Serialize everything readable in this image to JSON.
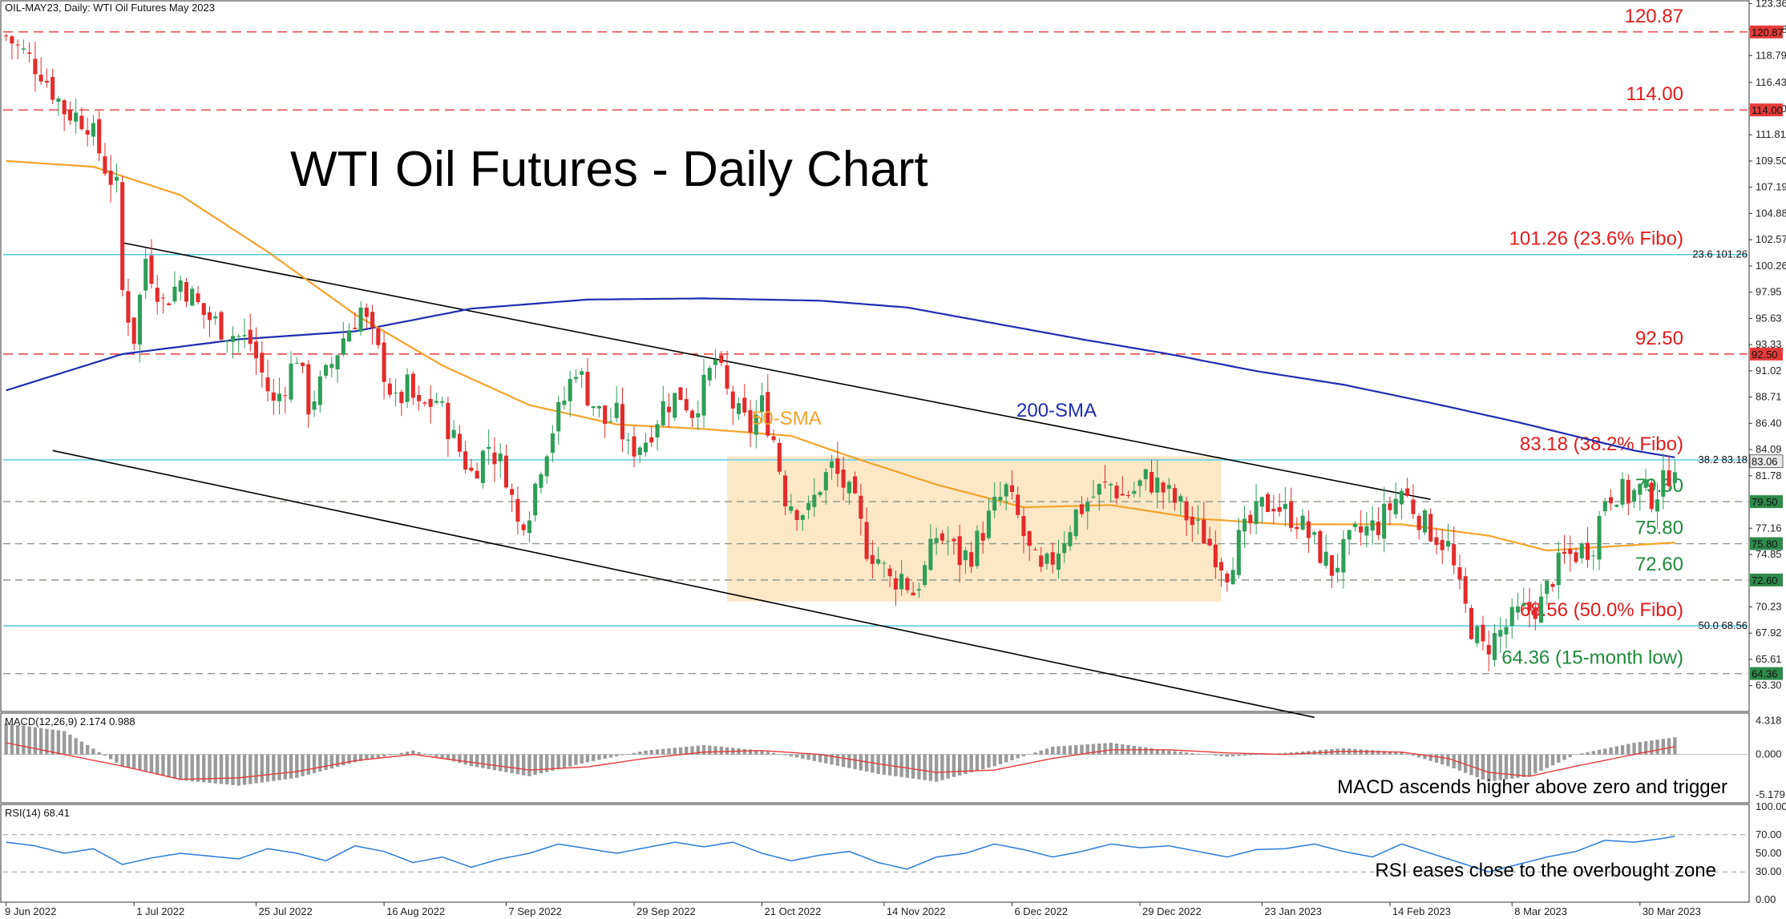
{
  "header": {
    "symbol_text": "OIL-MAY23, Daily:  WTI Oil Futures May 2023"
  },
  "colors": {
    "bull": "#2e9e57",
    "bear": "#e32b2b",
    "sma50": "#f5a32a",
    "sma200": "#1f2db0",
    "fibo": "#4fc8e8",
    "level": "#8a9a8e",
    "resistance": "#e23b3b",
    "rsi": "#2a7bd6",
    "macd_signal": "#e23b3b",
    "macd_hist": "#9a9a9a",
    "box": "#fbe3bd"
  },
  "chart_data": [
    {
      "type": "candlestick",
      "title": "WTI Oil Futures - Daily Chart",
      "y_range": [
        61.3,
        123.4
      ],
      "y_ticks": [
        "123.36",
        "121.08",
        "118.79",
        "116.43",
        "114.10",
        "111.81",
        "109.50",
        "107.19",
        "104.88",
        "102.57",
        "100.26",
        "97.95",
        "95.63",
        "93.33",
        "91.02",
        "88.71",
        "86.40",
        "84.09",
        "81.78",
        "79.47",
        "77.16",
        "74.85",
        "72.54",
        "70.23",
        "67.92",
        "65.61",
        "63.30"
      ],
      "x_labels": [
        "9 Jun 2022",
        "1 Jul 2022",
        "25 Jul 2022",
        "16 Aug 2022",
        "7 Sep 2022",
        "29 Sep 2022",
        "21 Oct 2022",
        "14 Nov 2022",
        "6 Dec 2022",
        "29 Dec 2022",
        "23 Jan 2023",
        "14 Feb 2023",
        "8 Mar 2023",
        "30 Mar 2023"
      ],
      "path_points": [
        [
          0,
          120.5
        ],
        [
          6,
          117.5
        ],
        [
          10,
          114.0
        ],
        [
          14,
          113.0
        ],
        [
          17,
          109.0
        ],
        [
          19,
          107.0
        ],
        [
          20,
          98.0
        ],
        [
          22,
          94.0
        ],
        [
          24,
          101.0
        ],
        [
          27,
          97.0
        ],
        [
          30,
          99.0
        ],
        [
          34,
          96.0
        ],
        [
          38,
          94.5
        ],
        [
          42,
          93.5
        ],
        [
          46,
          88.0
        ],
        [
          48,
          90.0
        ],
        [
          50,
          92.5
        ],
        [
          52,
          88.0
        ],
        [
          55,
          90.5
        ],
        [
          58,
          94.0
        ],
        [
          61,
          96.5
        ],
        [
          64,
          92.5
        ],
        [
          67,
          88.0
        ],
        [
          69,
          89.5
        ],
        [
          71,
          87.5
        ],
        [
          74,
          88.5
        ],
        [
          77,
          85.0
        ],
        [
          80,
          82.0
        ],
        [
          83,
          84.5
        ],
        [
          86,
          82.0
        ],
        [
          88,
          77.5
        ],
        [
          90,
          79.0
        ],
        [
          92,
          83.0
        ],
        [
          94,
          86.0
        ],
        [
          96,
          88.5
        ],
        [
          98,
          91.5
        ],
        [
          100,
          89.0
        ],
        [
          103,
          86.5
        ],
        [
          105,
          87.0
        ],
        [
          107,
          84.0
        ],
        [
          110,
          85.0
        ],
        [
          113,
          88.0
        ],
        [
          116,
          89.0
        ],
        [
          118,
          87.5
        ],
        [
          120,
          89.5
        ],
        [
          122,
          92.0
        ],
        [
          124,
          89.0
        ],
        [
          126,
          87.0
        ],
        [
          128,
          86.0
        ],
        [
          130,
          88.0
        ],
        [
          132,
          85.0
        ],
        [
          134,
          80.0
        ],
        [
          136,
          79.0
        ],
        [
          138,
          78.5
        ],
        [
          140,
          81.0
        ],
        [
          142,
          82.5
        ],
        [
          144,
          81.0
        ],
        [
          146,
          79.0
        ],
        [
          148,
          75.5
        ],
        [
          150,
          74.5
        ],
        [
          152,
          72.5
        ],
        [
          154,
          73.0
        ],
        [
          156,
          71.5
        ],
        [
          158,
          73.5
        ],
        [
          160,
          76.5
        ],
        [
          162,
          76.0
        ],
        [
          164,
          74.5
        ],
        [
          166,
          75.0
        ],
        [
          168,
          77.0
        ],
        [
          170,
          79.0
        ],
        [
          172,
          80.5
        ],
        [
          174,
          78.0
        ],
        [
          176,
          75.0
        ],
        [
          178,
          73.0
        ],
        [
          180,
          74.5
        ],
        [
          182,
          76.5
        ],
        [
          184,
          78.5
        ],
        [
          186,
          79.5
        ],
        [
          188,
          80.5
        ],
        [
          190,
          81.0
        ],
        [
          192,
          80.0
        ],
        [
          194,
          80.5
        ],
        [
          196,
          81.5
        ],
        [
          198,
          81.0
        ],
        [
          200,
          80.0
        ],
        [
          202,
          79.0
        ],
        [
          204,
          77.5
        ],
        [
          206,
          76.5
        ],
        [
          208,
          75.0
        ],
        [
          210,
          73.5
        ],
        [
          212,
          76.0
        ],
        [
          214,
          77.5
        ],
        [
          216,
          79.0
        ],
        [
          218,
          79.5
        ],
        [
          220,
          78.5
        ],
        [
          222,
          78.0
        ],
        [
          224,
          76.5
        ],
        [
          226,
          75.0
        ],
        [
          228,
          73.5
        ],
        [
          230,
          75.0
        ],
        [
          232,
          76.5
        ],
        [
          234,
          77.0
        ],
        [
          236,
          77.5
        ],
        [
          238,
          79.0
        ],
        [
          240,
          80.5
        ],
        [
          242,
          79.0
        ],
        [
          244,
          77.5
        ],
        [
          246,
          76.5
        ],
        [
          248,
          75.5
        ],
        [
          250,
          71.5
        ],
        [
          252,
          68.5
        ],
        [
          254,
          66.5
        ],
        [
          256,
          67.5
        ],
        [
          258,
          68.5
        ],
        [
          260,
          69.5
        ],
        [
          262,
          70.0
        ],
        [
          264,
          70.5
        ],
        [
          266,
          73.0
        ],
        [
          268,
          74.5
        ],
        [
          270,
          75.0
        ],
        [
          272,
          75.5
        ],
        [
          273,
          76.0
        ],
        [
          275,
          80.0
        ],
        [
          277,
          80.5
        ],
        [
          279,
          80.0
        ],
        [
          281,
          80.5
        ],
        [
          283,
          80.0
        ],
        [
          285,
          81.0
        ],
        [
          287,
          83.2
        ]
      ],
      "sma50": [
        [
          0,
          109.5
        ],
        [
          15,
          109.0
        ],
        [
          30,
          106.5
        ],
        [
          45,
          101.5
        ],
        [
          60,
          96.0
        ],
        [
          75,
          91.5
        ],
        [
          90,
          88.0
        ],
        [
          105,
          86.3
        ],
        [
          120,
          85.9
        ],
        [
          135,
          85.3
        ],
        [
          145,
          83.5
        ],
        [
          160,
          81.0
        ],
        [
          175,
          79.0
        ],
        [
          190,
          79.2
        ],
        [
          205,
          78.0
        ],
        [
          220,
          77.5
        ],
        [
          240,
          77.5
        ],
        [
          255,
          76.5
        ],
        [
          265,
          75.2
        ],
        [
          287,
          75.9
        ]
      ],
      "sma200": [
        [
          0,
          89.3
        ],
        [
          20,
          92.5
        ],
        [
          40,
          93.8
        ],
        [
          60,
          94.5
        ],
        [
          80,
          96.5
        ],
        [
          100,
          97.3
        ],
        [
          120,
          97.4
        ],
        [
          140,
          97.2
        ],
        [
          155,
          96.6
        ],
        [
          170,
          95.2
        ],
        [
          185,
          93.8
        ],
        [
          200,
          92.5
        ],
        [
          215,
          91.0
        ],
        [
          230,
          89.8
        ],
        [
          245,
          88.2
        ],
        [
          260,
          86.5
        ],
        [
          272,
          85.0
        ],
        [
          280,
          84.0
        ],
        [
          287,
          83.4
        ]
      ],
      "channel_upper": [
        [
          20,
          102.3
        ],
        [
          245,
          79.7
        ]
      ],
      "channel_lower": [
        [
          8,
          84.0
        ],
        [
          225,
          60.5
        ]
      ],
      "consolidation_box": {
        "x": [
          124,
          209
        ],
        "y": [
          70.7,
          83.5
        ]
      },
      "levels": [
        {
          "value": 120.87,
          "label": "120.87",
          "badge": "120.87",
          "style": "resistance"
        },
        {
          "value": 114.0,
          "label": "114.00",
          "badge": "114.00",
          "style": "resistance"
        },
        {
          "value": 101.26,
          "label": "101.26 (23.6% Fibo)",
          "badge": "23.6 101.26",
          "style": "fibo"
        },
        {
          "value": 92.5,
          "label": "92.50",
          "badge": "92.50",
          "style": "resistance"
        },
        {
          "value": 83.18,
          "label": "83.18 (38.2% Fibo)",
          "badge": "38.2 83.18",
          "style": "fibo"
        },
        {
          "value": 79.5,
          "label": "79.50",
          "badge": "79.50",
          "style": "level"
        },
        {
          "value": 75.8,
          "label": "75.80",
          "badge": "75.80",
          "style": "level"
        },
        {
          "value": 72.6,
          "label": "72.60",
          "badge": "72.60",
          "style": "level"
        },
        {
          "value": 68.56,
          "label": "68.56 (50.0% Fibo)",
          "badge": "50.0 68.56",
          "style": "fibo"
        },
        {
          "value": 64.36,
          "label": "64.36 (15-month low)",
          "badge": "64.36",
          "style": "level"
        }
      ],
      "current_price_badge": "83.06",
      "sma50_label": "50-SMA",
      "sma200_label": "200-SMA"
    },
    {
      "type": "histogram",
      "name": "MACD",
      "legend": "MACD(12,26,9) 2.174 0.988",
      "y_ticks": [
        "4.318",
        "0.000",
        "-5.179"
      ],
      "y_range": [
        -5.8,
        4.9
      ],
      "hist": [
        [
          0,
          4.0
        ],
        [
          10,
          3.0
        ],
        [
          20,
          -1.5
        ],
        [
          30,
          -3.3
        ],
        [
          40,
          -4.0
        ],
        [
          50,
          -3.0
        ],
        [
          60,
          -1.0
        ],
        [
          70,
          0.5
        ],
        [
          80,
          -1.5
        ],
        [
          90,
          -2.8
        ],
        [
          100,
          -1.0
        ],
        [
          110,
          0.5
        ],
        [
          120,
          1.2
        ],
        [
          130,
          0.5
        ],
        [
          140,
          -1.0
        ],
        [
          150,
          -2.5
        ],
        [
          160,
          -3.5
        ],
        [
          170,
          -1.5
        ],
        [
          180,
          1.0
        ],
        [
          190,
          1.5
        ],
        [
          200,
          0.5
        ],
        [
          210,
          -0.3
        ],
        [
          220,
          0.2
        ],
        [
          230,
          0.8
        ],
        [
          240,
          0.3
        ],
        [
          248,
          -1.5
        ],
        [
          255,
          -3.5
        ],
        [
          262,
          -2.8
        ],
        [
          270,
          0.0
        ],
        [
          280,
          1.5
        ],
        [
          287,
          2.2
        ]
      ],
      "signal": [
        [
          0,
          1.5
        ],
        [
          10,
          0.0
        ],
        [
          20,
          -1.5
        ],
        [
          30,
          -3.2
        ],
        [
          40,
          -3.0
        ],
        [
          50,
          -2.2
        ],
        [
          60,
          -0.8
        ],
        [
          70,
          0.0
        ],
        [
          80,
          -1.0
        ],
        [
          90,
          -2.0
        ],
        [
          100,
          -1.6
        ],
        [
          110,
          -0.5
        ],
        [
          120,
          0.3
        ],
        [
          130,
          0.5
        ],
        [
          140,
          0.0
        ],
        [
          150,
          -1.2
        ],
        [
          160,
          -2.3
        ],
        [
          170,
          -2.0
        ],
        [
          180,
          -0.5
        ],
        [
          190,
          0.6
        ],
        [
          200,
          0.6
        ],
        [
          210,
          0.2
        ],
        [
          220,
          0.0
        ],
        [
          230,
          0.4
        ],
        [
          240,
          0.3
        ],
        [
          248,
          -0.5
        ],
        [
          255,
          -2.3
        ],
        [
          262,
          -2.8
        ],
        [
          270,
          -1.5
        ],
        [
          280,
          0.0
        ],
        [
          287,
          1.0
        ]
      ],
      "annotation": "MACD ascends higher above zero and trigger"
    },
    {
      "type": "line",
      "name": "RSI",
      "legend": "RSI(14) 68.41",
      "y_ticks": [
        "100.00",
        "70.00",
        "50.00",
        "30.00",
        "0.00"
      ],
      "y_range": [
        0,
        100
      ],
      "overbought": 70,
      "oversold": 30,
      "values": [
        [
          0,
          62
        ],
        [
          5,
          58
        ],
        [
          10,
          50
        ],
        [
          15,
          55
        ],
        [
          20,
          38
        ],
        [
          25,
          45
        ],
        [
          30,
          50
        ],
        [
          35,
          47
        ],
        [
          40,
          44
        ],
        [
          45,
          55
        ],
        [
          50,
          50
        ],
        [
          55,
          42
        ],
        [
          60,
          58
        ],
        [
          65,
          52
        ],
        [
          70,
          40
        ],
        [
          75,
          46
        ],
        [
          80,
          35
        ],
        [
          85,
          44
        ],
        [
          90,
          50
        ],
        [
          95,
          60
        ],
        [
          100,
          55
        ],
        [
          105,
          50
        ],
        [
          110,
          56
        ],
        [
          115,
          62
        ],
        [
          120,
          57
        ],
        [
          125,
          62
        ],
        [
          130,
          50
        ],
        [
          135,
          42
        ],
        [
          140,
          48
        ],
        [
          145,
          52
        ],
        [
          150,
          40
        ],
        [
          155,
          33
        ],
        [
          160,
          46
        ],
        [
          165,
          50
        ],
        [
          170,
          60
        ],
        [
          175,
          54
        ],
        [
          180,
          46
        ],
        [
          185,
          52
        ],
        [
          190,
          60
        ],
        [
          195,
          56
        ],
        [
          200,
          58
        ],
        [
          205,
          52
        ],
        [
          210,
          46
        ],
        [
          215,
          54
        ],
        [
          220,
          55
        ],
        [
          225,
          60
        ],
        [
          230,
          52
        ],
        [
          235,
          46
        ],
        [
          240,
          60
        ],
        [
          245,
          50
        ],
        [
          250,
          40
        ],
        [
          255,
          30
        ],
        [
          260,
          38
        ],
        [
          265,
          46
        ],
        [
          270,
          52
        ],
        [
          275,
          64
        ],
        [
          280,
          62
        ],
        [
          285,
          66
        ],
        [
          287,
          68.4
        ]
      ],
      "annotation": "RSI eases close to the overbought zone"
    }
  ]
}
